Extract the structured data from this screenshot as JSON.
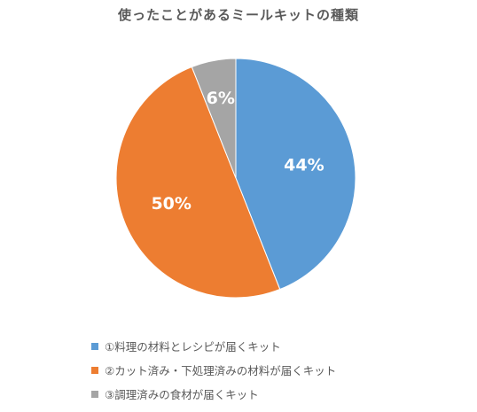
{
  "chart_data": {
    "type": "pie",
    "title": "使ったことがあるミールキットの種類",
    "slices": [
      {
        "name": "①料理の材料とレシピが届くキット",
        "value": 44,
        "label": "44%",
        "color": "#5B9BD5"
      },
      {
        "name": "②カット済み・下処理済みの材料が届くキット",
        "value": 50,
        "label": "50%",
        "color": "#ED7D31"
      },
      {
        "name": "③調理済みの食材が届くキット",
        "value": 6,
        "label": "6%",
        "color": "#A5A5A5"
      }
    ],
    "start_angle_deg": 0,
    "direction": "clockwise",
    "legend_position": "bottom",
    "data_labels": "inside"
  }
}
